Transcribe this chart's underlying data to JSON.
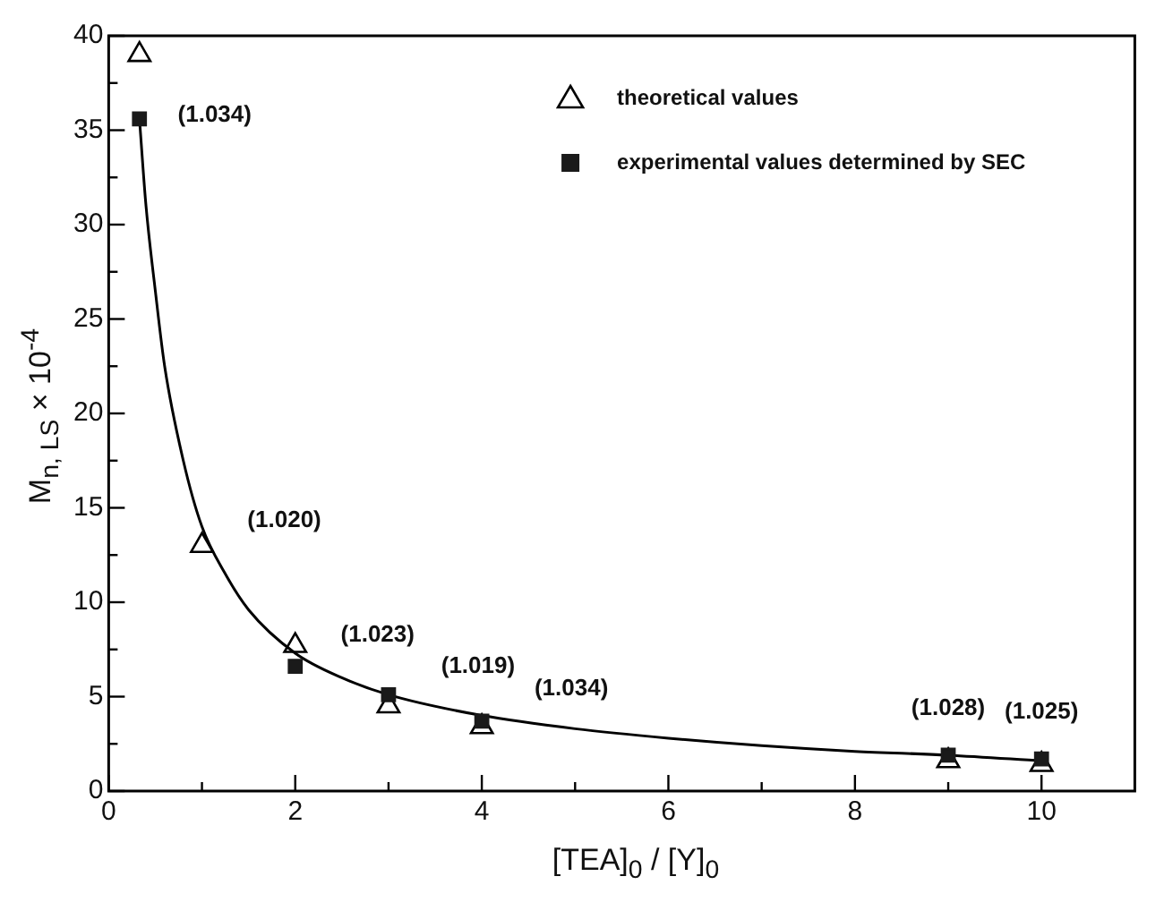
{
  "chart_data": {
    "type": "scatter",
    "xlabel": "[TEA]$_{0}$ / [Y]$_{0}$",
    "ylabel": "M$_{n, LS}$ × 10$^{-4}$",
    "xlim": [
      0,
      11
    ],
    "xticks": [
      0,
      {
        "value": 1,
        "label": null
      },
      2,
      {
        "value": 3,
        "label": null
      },
      4,
      {
        "value": 5,
        "label": null
      },
      6,
      {
        "value": 7,
        "label": null
      },
      8,
      {
        "value": 9,
        "label": null
      },
      10
    ],
    "ylim": [
      0,
      40
    ],
    "yticks": [
      0,
      {
        "value": 2.5,
        "label": null
      },
      5,
      {
        "value": 7.5,
        "label": null
      },
      10,
      {
        "value": 12.5,
        "label": null
      },
      15,
      {
        "value": 17.5,
        "label": null
      },
      20,
      {
        "value": 22.5,
        "label": null
      },
      25,
      {
        "value": 27.5,
        "label": null
      },
      30,
      {
        "value": 32.5,
        "label": null
      },
      35,
      {
        "value": 37.5,
        "label": null
      },
      40
    ],
    "grid": false,
    "legend": "top right",
    "series": [
      {
        "name": "theoretical values",
        "type": "scatter",
        "marker": "triangle",
        "color": "#000000",
        "x": [
          0.33,
          1,
          2,
          3,
          4,
          9,
          10
        ],
        "values": [
          39,
          13,
          7.7,
          4.5,
          3.4,
          1.6,
          1.4
        ]
      },
      {
        "name": "experimental values determined by SEC",
        "type": "scatter",
        "marker": "square",
        "color": "#1a1a1a",
        "x": [
          0.33,
          2,
          3,
          4,
          9,
          10
        ],
        "values": [
          35.6,
          6.6,
          5.1,
          3.7,
          1.9,
          1.7
        ]
      },
      {
        "type": "line",
        "marker": "none",
        "color": "#000000",
        "x": [
          0.33,
          0.4,
          0.5,
          0.6,
          0.8,
          1,
          1.25,
          1.5,
          2,
          2.5,
          3,
          4,
          5,
          6,
          7,
          8,
          9,
          10
        ],
        "values": [
          35.6,
          31,
          26.5,
          22.5,
          17.5,
          14,
          11.5,
          9.6,
          7.3,
          6,
          5.1,
          4,
          3.3,
          2.8,
          2.4,
          2.1,
          1.9,
          1.6
        ]
      }
    ],
    "annotations": [
      {
        "text": "(1.034)",
        "x": 0.33,
        "y": 35.6
      },
      {
        "text": "(1.020)",
        "x": 1,
        "y": 13
      },
      {
        "text": "(1.023)",
        "x": 2,
        "y": 7.7
      },
      {
        "text": "(1.019)",
        "x": 3,
        "y": 5.1
      },
      {
        "text": "(1.034)",
        "x": 4,
        "y": 3.7
      },
      {
        "text": "(1.028)",
        "x": 9,
        "y": 1.9
      },
      {
        "text": "(1.025)",
        "x": 10,
        "y": 1.7
      }
    ]
  }
}
